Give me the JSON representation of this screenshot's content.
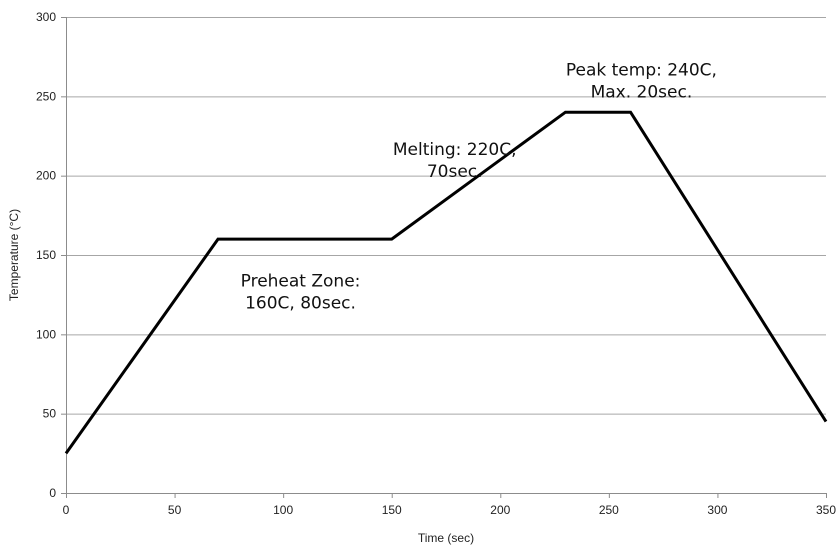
{
  "chart_data": {
    "type": "line",
    "xlabel": "Time (sec)",
    "ylabel": "Temperature (°C)",
    "xlim": [
      0,
      350
    ],
    "ylim": [
      0,
      300
    ],
    "xticks": [
      0,
      50,
      100,
      150,
      200,
      250,
      300,
      350
    ],
    "yticks": [
      0,
      50,
      100,
      150,
      200,
      250,
      300
    ],
    "grid": "horizontal",
    "series": [
      {
        "x": [
          0,
          70,
          150,
          230,
          260,
          350
        ],
        "y": [
          25,
          160,
          160,
          240,
          240,
          45
        ],
        "color": "#000000"
      }
    ],
    "annotations": [
      {
        "lines": [
          "Peak temp: 240C,",
          "Max. 20sec."
        ],
        "x": 265,
        "y": 263
      },
      {
        "lines": [
          "Melting: 220C,",
          "70sec."
        ],
        "x": 179,
        "y": 213
      },
      {
        "lines": [
          "Preheat Zone:",
          "160C, 80sec."
        ],
        "x": 108,
        "y": 130
      }
    ]
  }
}
